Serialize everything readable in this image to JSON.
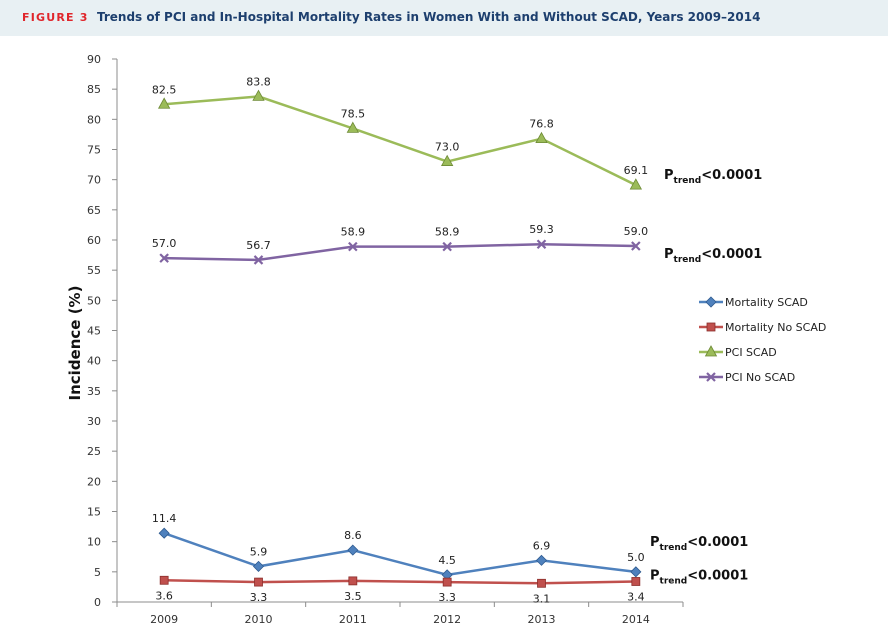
{
  "header": {
    "figure_label": "FIGURE 3",
    "title": "Trends of PCI and In-Hospital Mortality Rates in Women With and Without SCAD, Years 2009–2014"
  },
  "chart_data": {
    "type": "line",
    "ylabel": "Incidence (%)",
    "xlabel": "",
    "ylim": [
      0,
      90
    ],
    "yticks": [
      0,
      5,
      10,
      15,
      20,
      25,
      30,
      35,
      40,
      45,
      50,
      55,
      60,
      65,
      70,
      75,
      80,
      85,
      90
    ],
    "categories": [
      "2009",
      "2010",
      "2011",
      "2012",
      "2013",
      "2014"
    ],
    "grid": false,
    "legend_position": "right",
    "series": [
      {
        "name": "Mortality SCAD",
        "color": "#4f81bd",
        "marker": "diamond",
        "values": [
          11.4,
          5.9,
          8.6,
          4.5,
          6.9,
          5.0
        ],
        "labels": [
          "11.4",
          "5.9",
          "8.6",
          "4.5",
          "6.9",
          "5.0"
        ]
      },
      {
        "name": "Mortality No SCAD",
        "color": "#c0504d",
        "marker": "square",
        "values": [
          3.6,
          3.3,
          3.5,
          3.3,
          3.1,
          3.4
        ],
        "labels": [
          "3.6",
          "3.3",
          "3.5",
          "3.3",
          "3.1",
          "3.4"
        ]
      },
      {
        "name": "PCI SCAD",
        "color": "#9bbb59",
        "marker": "triangle",
        "values": [
          82.5,
          83.8,
          78.5,
          73.0,
          76.8,
          69.1
        ],
        "labels": [
          "82.5",
          "83.8",
          "78.5",
          "73.0",
          "76.8",
          "69.1"
        ]
      },
      {
        "name": "PCI No SCAD",
        "color": "#8064a2",
        "marker": "x",
        "values": [
          57.0,
          56.7,
          58.9,
          58.9,
          59.3,
          59.0
        ],
        "labels": [
          "57.0",
          "56.7",
          "58.9",
          "58.9",
          "59.3",
          "59.0"
        ]
      }
    ],
    "annotations": [
      {
        "series": "PCI SCAD",
        "main": "P",
        "sub": "trend",
        "rest": "<0.0001"
      },
      {
        "series": "PCI No SCAD",
        "main": "P",
        "sub": "trend",
        "rest": "<0.0001"
      },
      {
        "series": "Mortality SCAD",
        "main": "P",
        "sub": "trend",
        "rest": "<0.0001"
      },
      {
        "series": "Mortality No SCAD",
        "main": "P",
        "sub": "trend",
        "rest": "<0.0001"
      }
    ]
  }
}
